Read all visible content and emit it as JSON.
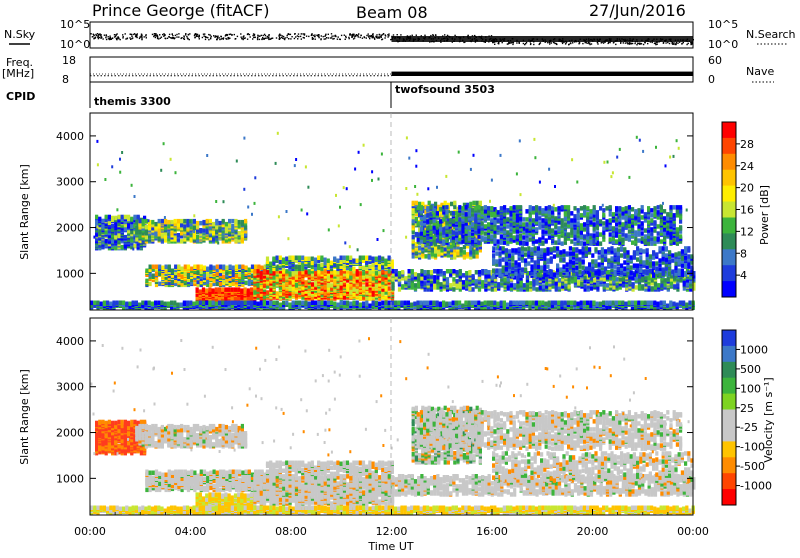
{
  "header": {
    "station": "Prince George (fitACF)",
    "beam": "Beam 08",
    "date": "27/Jun/2016"
  },
  "top_panels": {
    "nsky_label": "N.Sky",
    "nsky_ticks": [
      "10^5",
      "10^0"
    ],
    "nsearch_label": "N.Search",
    "nsearch_ticks": [
      "10^5",
      "10^0"
    ],
    "freq_label_1": "Freq.",
    "freq_label_2": "[MHz]",
    "freq_ticks": [
      "18",
      "8"
    ],
    "nave_label": "Nave",
    "nave_ticks": [
      "60",
      "0"
    ],
    "cpid_label": "CPID",
    "cpid_segments": [
      {
        "name": "themis 3300",
        "start_h": 0,
        "end_h": 12
      },
      {
        "name": "twofsound 3503",
        "start_h": 12,
        "end_h": 24
      }
    ],
    "freq_data": {
      "before_12_MHz": 10.5,
      "after_12_MHz": 11.0
    },
    "nave_data": {
      "before_12": 0,
      "after_12": 25
    }
  },
  "chart_data": [
    {
      "type": "heatmap",
      "name": "Power",
      "ylabel": "Slant Range [km]",
      "xlabel": "",
      "ylim": [
        200,
        4500
      ],
      "xlim": [
        0,
        24
      ],
      "yticks": [
        "4000",
        "3000",
        "2000",
        "1000"
      ],
      "colorbar_label": "Power [dB]",
      "colorbar_ticks": [
        "28",
        "24",
        "20",
        "16",
        "12",
        "8",
        "4"
      ],
      "colorbar_colors": [
        "#ff0000",
        "#ff4500",
        "#ff8c00",
        "#ffc400",
        "#ffee00",
        "#c8e632",
        "#3cb43c",
        "#2e8b57",
        "#3c78c8",
        "#1e3cdc",
        "#0000ff"
      ]
    },
    {
      "type": "heatmap",
      "name": "Velocity",
      "ylabel": "Slant Range [km]",
      "xlabel": "Time UT",
      "ylim": [
        200,
        4500
      ],
      "xlim": [
        0,
        24
      ],
      "yticks": [
        "4000",
        "3000",
        "2000",
        "1000"
      ],
      "xticks": [
        "00:00",
        "04:00",
        "08:00",
        "12:00",
        "16:00",
        "20:00",
        "00:00"
      ],
      "colorbar_label": "Velocity [m s⁻¹]",
      "colorbar_ticks": [
        "1000",
        "500",
        "100",
        "25",
        "-25",
        "-100",
        "-500",
        "-1000"
      ],
      "colorbar_colors": [
        "#1e3cdc",
        "#3c78c8",
        "#2e8b57",
        "#3cb43c",
        "#7ed321",
        "#c8c8c8",
        "#c8c8c8",
        "#ffc400",
        "#ff8c00",
        "#ff4500",
        "#ff0000"
      ]
    }
  ]
}
